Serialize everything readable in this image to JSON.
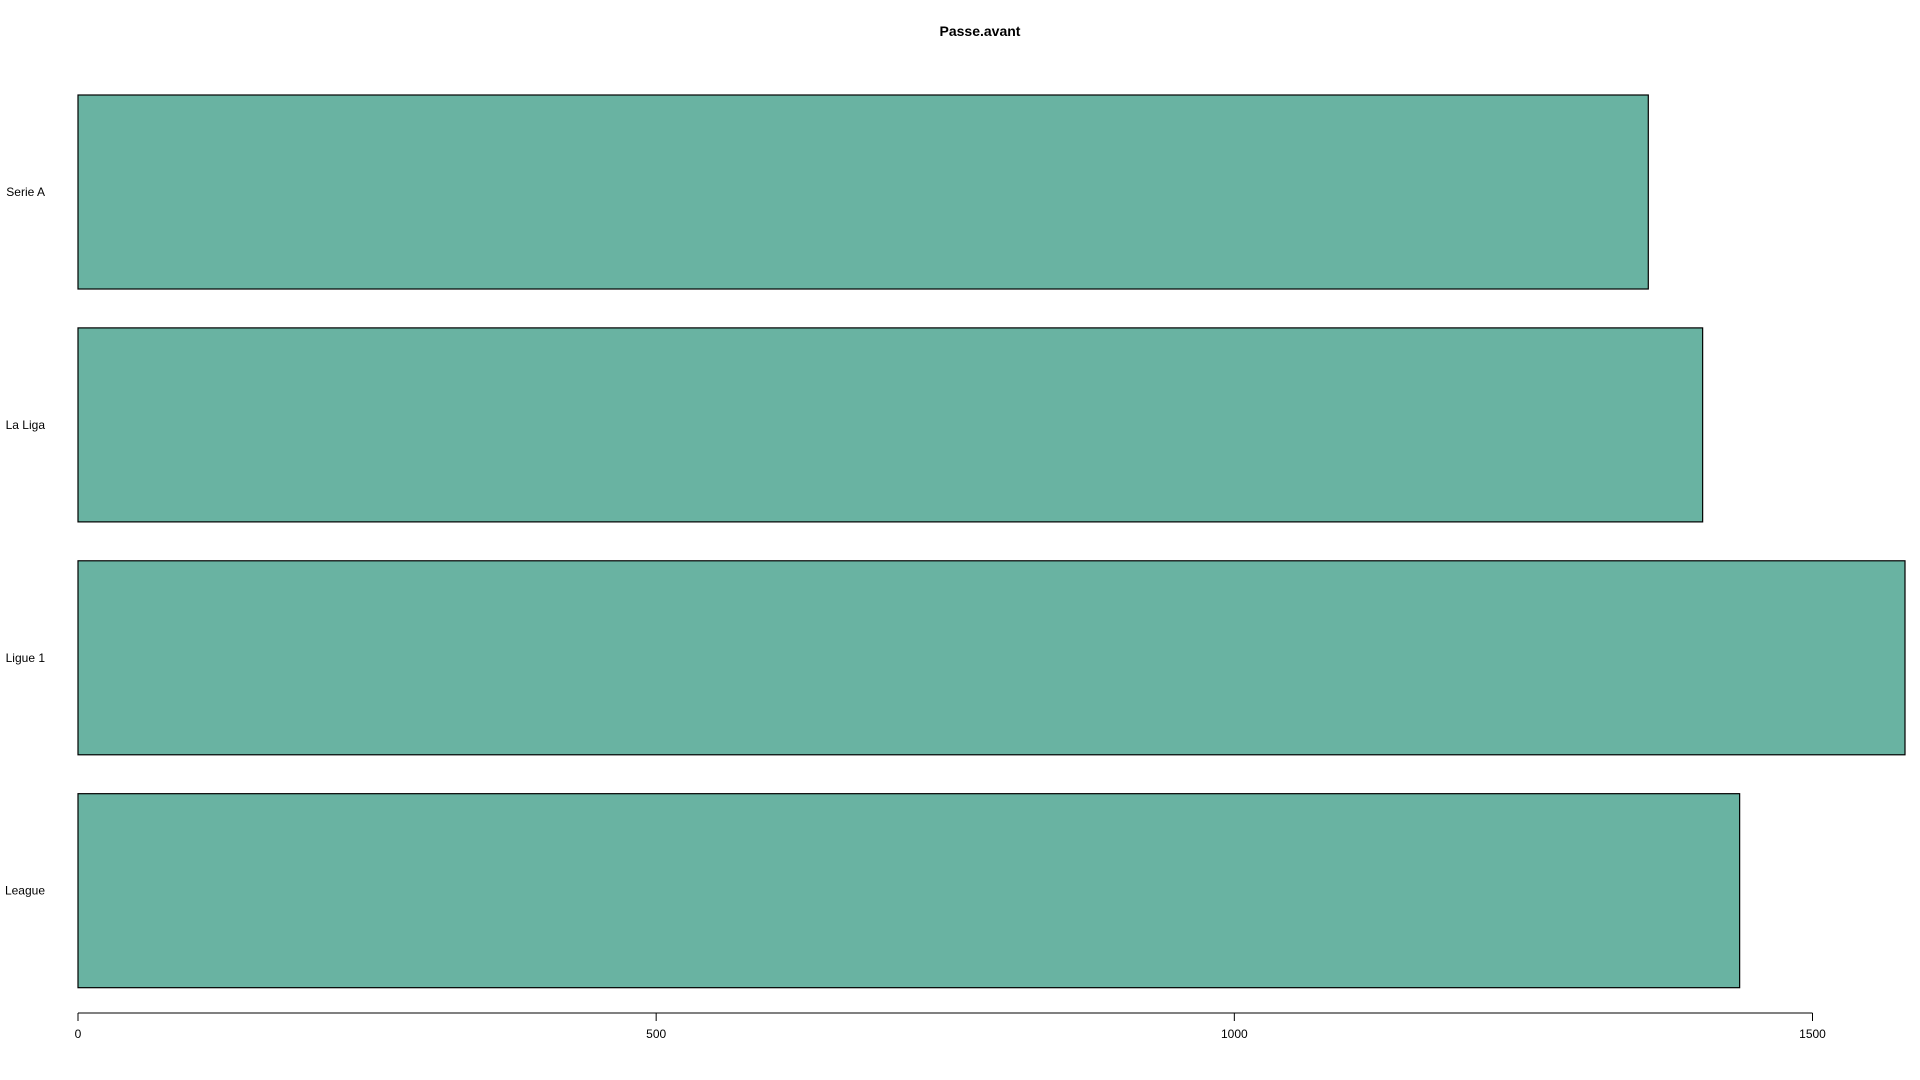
{
  "chart_data": {
    "type": "bar",
    "orientation": "horizontal",
    "title": "Passe.avant",
    "xlabel": "",
    "ylabel": "",
    "categories": [
      "Serie A",
      "La Liga",
      "Ligue 1",
      "League"
    ],
    "values": [
      1358,
      1405,
      1580,
      1437
    ],
    "xlim": [
      0,
      1580
    ],
    "xticks": [
      0,
      500,
      1000,
      1500
    ],
    "grid": false,
    "legend": "none",
    "bar_color": "#69b3a2",
    "bar_edge_color": "#000000"
  }
}
